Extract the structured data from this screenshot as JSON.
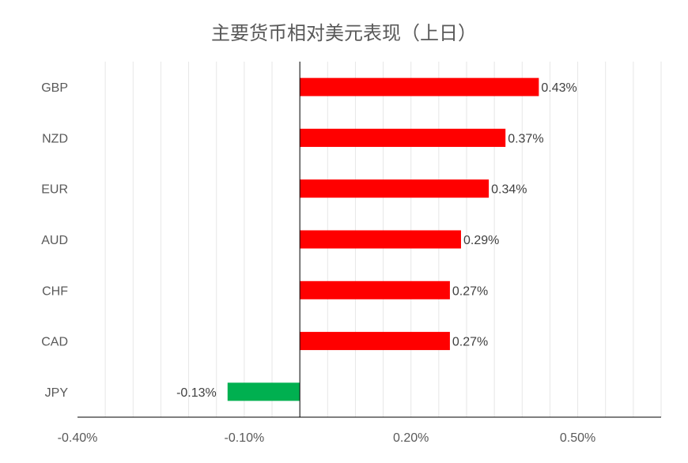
{
  "chart_data": {
    "type": "bar",
    "orientation": "horizontal",
    "title": "主要货币相对美元表现（上日）",
    "categories": [
      "GBP",
      "NZD",
      "EUR",
      "AUD",
      "CHF",
      "CAD",
      "JPY"
    ],
    "values": [
      0.43,
      0.37,
      0.34,
      0.29,
      0.27,
      0.27,
      -0.13
    ],
    "value_labels": [
      "0.43%",
      "0.37%",
      "0.34%",
      "0.29%",
      "0.27%",
      "0.27%",
      "-0.13%"
    ],
    "xlim": [
      -0.4,
      0.65
    ],
    "x_tick_labels": [
      {
        "value": -0.4,
        "label": "-0.40%"
      },
      {
        "value": -0.1,
        "label": "-0.10%"
      },
      {
        "value": 0.2,
        "label": "0.20%"
      },
      {
        "value": 0.5,
        "label": "0.50%"
      }
    ],
    "grid": true,
    "legend": "none",
    "colors": {
      "positive": "#ff0000",
      "negative": "#00b050",
      "grid": "#e6e6e6",
      "axis": "#000000"
    }
  }
}
